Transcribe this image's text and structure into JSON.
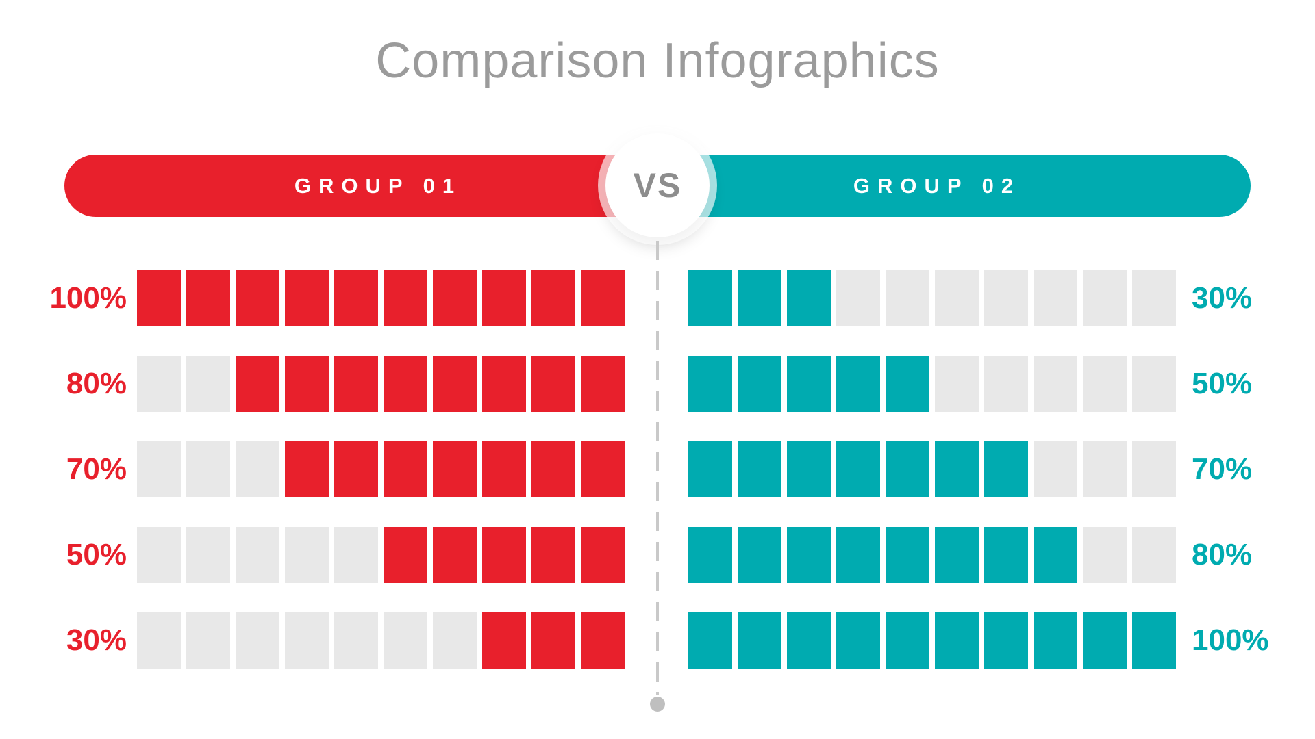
{
  "title": "Comparison Infographics",
  "vs_label": "VS",
  "groups": [
    {
      "name": "GROUP 01",
      "color": "#e8202c",
      "side": "left"
    },
    {
      "name": "GROUP 02",
      "color": "#00abb0",
      "side": "right"
    }
  ],
  "colors": {
    "red": "#e8202c",
    "teal": "#00abb0",
    "empty_block": "#e8e8e8",
    "title_text": "#9b9b9b",
    "vs_text": "#8d8d8d",
    "divider": "#c9c9c9",
    "divider_dot": "#bfbfbf",
    "header_text": "#ffffff"
  },
  "chart_data": {
    "type": "bar",
    "subtype": "block-progress-comparison",
    "title": "Comparison Infographics",
    "blocks_per_row": 10,
    "unit": "%",
    "grid": false,
    "legend_position": "none",
    "empty_color": "#e8e8e8",
    "series": [
      {
        "name": "GROUP 01",
        "side": "left",
        "fill_align": "right",
        "color": "#e8202c",
        "values": [
          100,
          80,
          70,
          50,
          30
        ],
        "labels": [
          "100%",
          "80%",
          "70%",
          "50%",
          "30%"
        ]
      },
      {
        "name": "GROUP 02",
        "side": "right",
        "fill_align": "left",
        "color": "#00abb0",
        "values": [
          30,
          50,
          70,
          80,
          100
        ],
        "labels": [
          "30%",
          "50%",
          "70%",
          "80%",
          "100%"
        ]
      }
    ]
  }
}
